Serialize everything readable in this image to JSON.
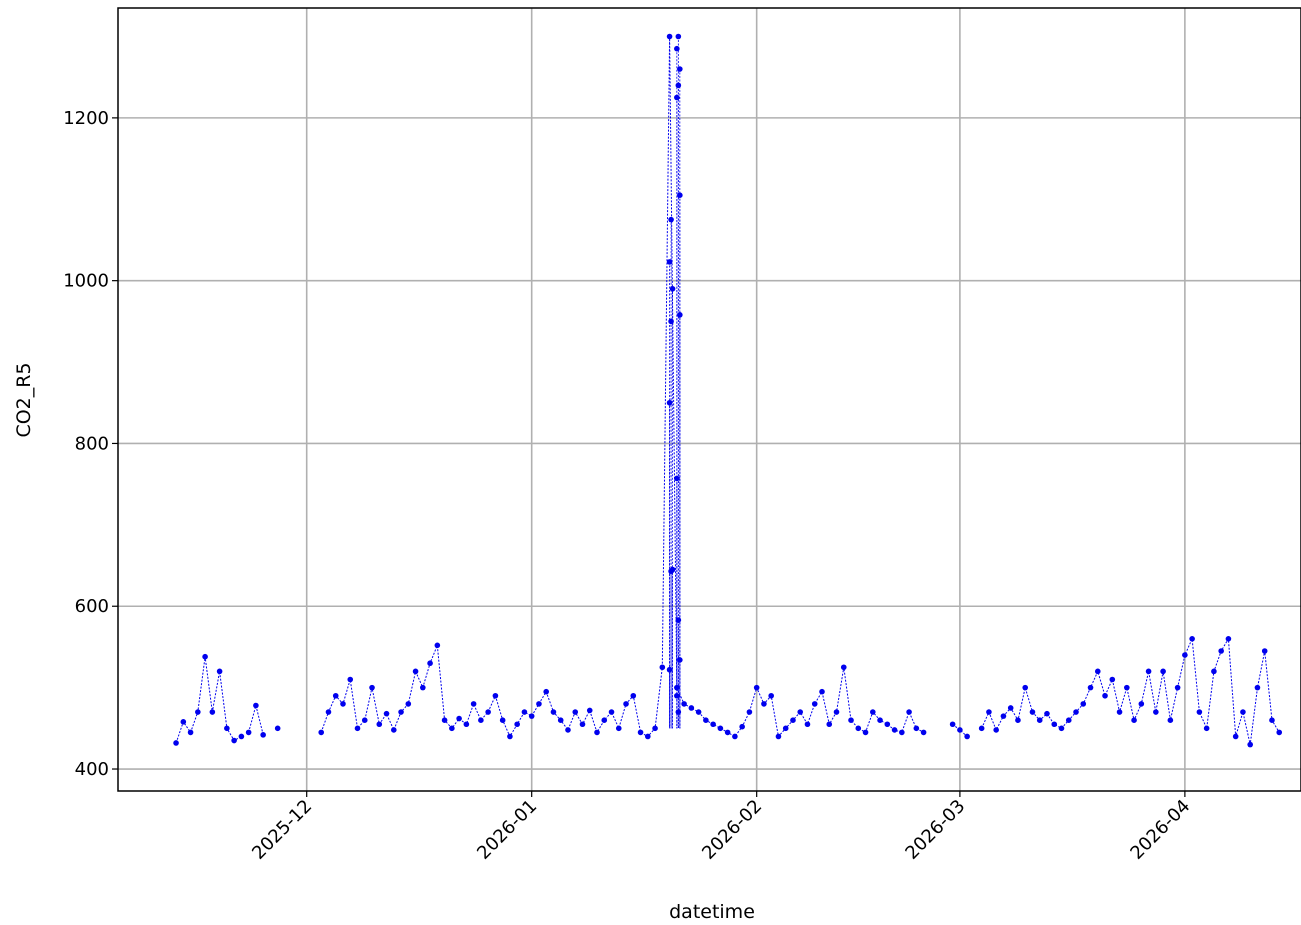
{
  "chart_data": {
    "type": "line",
    "xlabel": "datetime",
    "ylabel": "CO2_R5",
    "x_range": [
      "2025-11-05",
      "2026-04-17"
    ],
    "ylim": [
      373,
      1335
    ],
    "y_ticks": [
      400,
      600,
      800,
      1000,
      1200
    ],
    "x_ticks": [
      {
        "date": "2025-12-01",
        "label": "2025-12"
      },
      {
        "date": "2026-01-01",
        "label": "2026-01"
      },
      {
        "date": "2026-02-01",
        "label": "2026-02"
      },
      {
        "date": "2026-03-01",
        "label": "2026-03"
      },
      {
        "date": "2026-04-01",
        "label": "2026-04"
      }
    ],
    "grid": true,
    "color": "#0000ee",
    "marker": "dot",
    "line_style": "dotted",
    "segments": [
      {
        "x": [
          "2025-11-13",
          "2025-11-14",
          "2025-11-15",
          "2025-11-16",
          "2025-11-17",
          "2025-11-18",
          "2025-11-19",
          "2025-11-20",
          "2025-11-21",
          "2025-11-22"
        ],
        "y": [
          432,
          458,
          445,
          470,
          538,
          470,
          520,
          450,
          435,
          440
        ]
      },
      {
        "x": [
          "2025-11-23",
          "2025-11-24",
          "2025-11-25"
        ],
        "y": [
          445,
          478,
          442
        ]
      },
      {
        "x": [
          "2025-11-27"
        ],
        "y": [
          450
        ]
      },
      {
        "x": [
          "2025-12-03",
          "2025-12-04",
          "2025-12-05",
          "2025-12-06",
          "2025-12-07",
          "2025-12-08",
          "2025-12-09",
          "2025-12-10",
          "2025-12-11",
          "2025-12-12",
          "2025-12-13",
          "2025-12-14",
          "2025-12-15",
          "2025-12-16",
          "2025-12-17",
          "2025-12-18",
          "2025-12-19",
          "2025-12-20",
          "2025-12-21",
          "2025-12-22",
          "2025-12-23",
          "2025-12-24",
          "2025-12-25",
          "2025-12-26",
          "2025-12-27",
          "2025-12-28",
          "2025-12-29",
          "2025-12-30",
          "2025-12-31",
          "2026-01-01",
          "2026-01-02",
          "2026-01-03",
          "2026-01-04",
          "2026-01-05",
          "2026-01-06",
          "2026-01-07",
          "2026-01-08",
          "2026-01-09",
          "2026-01-10",
          "2026-01-11",
          "2026-01-12",
          "2026-01-13",
          "2026-01-14",
          "2026-01-15",
          "2026-01-16",
          "2026-01-17",
          "2026-01-18",
          "2026-01-19",
          "2026-01-20",
          "2026-01-21",
          "2026-01-22",
          "2026-01-23",
          "2026-01-24",
          "2026-01-25",
          "2026-01-26",
          "2026-01-27",
          "2026-01-28",
          "2026-01-29",
          "2026-01-30",
          "2026-01-31",
          "2026-02-01",
          "2026-02-02",
          "2026-02-03",
          "2026-02-04",
          "2026-02-05",
          "2026-02-06",
          "2026-02-07",
          "2026-02-08",
          "2026-02-09",
          "2026-02-10",
          "2026-02-11",
          "2026-02-12",
          "2026-02-13",
          "2026-02-14",
          "2026-02-15",
          "2026-02-16",
          "2026-02-17",
          "2026-02-18",
          "2026-02-19",
          "2026-02-20",
          "2026-02-21",
          "2026-02-22",
          "2026-02-23",
          "2026-02-24"
        ],
        "y": [
          445,
          470,
          490,
          480,
          510,
          450,
          460,
          500,
          455,
          468,
          448,
          470,
          480,
          520,
          500,
          530,
          552,
          460,
          450,
          462,
          455,
          480,
          460,
          470,
          490,
          460,
          440,
          455,
          470,
          465,
          480,
          495,
          470,
          460,
          448,
          470,
          455,
          472,
          445,
          460,
          470,
          450,
          480,
          490,
          445,
          440,
          450,
          525,
          1300,
          500,
          480,
          475,
          470,
          460,
          455,
          450,
          445,
          440,
          452,
          470,
          500,
          480,
          490,
          440,
          450,
          460,
          470,
          455,
          480,
          495,
          455,
          470,
          525,
          460,
          450,
          445,
          470,
          460,
          455,
          448,
          445,
          470,
          450,
          445
        ]
      },
      {
        "x": [
          "2026-02-28",
          "2026-03-01",
          "2026-03-02"
        ],
        "y": [
          455,
          448,
          440
        ]
      },
      {
        "x": [
          "2026-03-04",
          "2026-03-05",
          "2026-03-06",
          "2026-03-07",
          "2026-03-08",
          "2026-03-09",
          "2026-03-10",
          "2026-03-11",
          "2026-03-12",
          "2026-03-13",
          "2026-03-14",
          "2026-03-15",
          "2026-03-16",
          "2026-03-17",
          "2026-03-18",
          "2026-03-19",
          "2026-03-20",
          "2026-03-21",
          "2026-03-22",
          "2026-03-23",
          "2026-03-24",
          "2026-03-25",
          "2026-03-26",
          "2026-03-27",
          "2026-03-28",
          "2026-03-29",
          "2026-03-30",
          "2026-03-31",
          "2026-04-01",
          "2026-04-02",
          "2026-04-03",
          "2026-04-04",
          "2026-04-05",
          "2026-04-06",
          "2026-04-07",
          "2026-04-08",
          "2026-04-09",
          "2026-04-10",
          "2026-04-11",
          "2026-04-12",
          "2026-04-13",
          "2026-04-14"
        ],
        "y": [
          450,
          470,
          448,
          465,
          475,
          460,
          500,
          470,
          460,
          468,
          455,
          450,
          460,
          470,
          480,
          500,
          520,
          490,
          510,
          470,
          500,
          460,
          480,
          520,
          470,
          520,
          460,
          500,
          540,
          560,
          470,
          450,
          520,
          545,
          560,
          440,
          470,
          430,
          500,
          545,
          460,
          445
        ]
      }
    ],
    "spike_points": {
      "x": [
        "2026-01-20",
        "2026-01-20",
        "2026-01-20",
        "2026-01-20",
        "2026-01-20",
        "2026-01-20",
        "2026-01-20",
        "2026-01-20",
        "2026-01-21",
        "2026-01-21",
        "2026-01-21",
        "2026-01-21",
        "2026-01-21",
        "2026-01-21",
        "2026-01-21",
        "2026-01-21",
        "2026-01-21",
        "2026-01-21",
        "2026-01-21",
        "2026-01-21"
      ],
      "y": [
        522,
        643,
        645,
        850,
        950,
        990,
        1023,
        1075,
        1105,
        1225,
        1240,
        1260,
        1285,
        1300,
        958,
        757,
        583,
        534,
        490,
        470
      ]
    }
  }
}
